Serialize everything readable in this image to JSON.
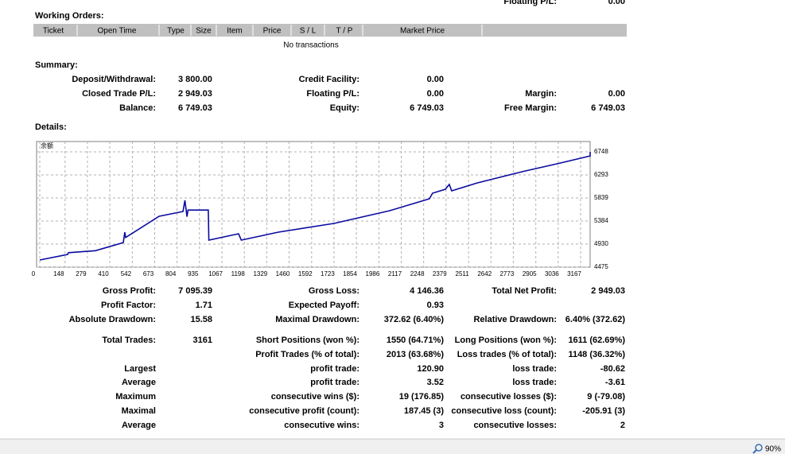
{
  "top_partial": {
    "label": "Floating P/L:",
    "value": "0.00"
  },
  "working_orders": {
    "title": "Working Orders:",
    "columns": [
      "Ticket",
      "Open Time",
      "Type",
      "Size",
      "Item",
      "Price",
      "S / L",
      "T / P",
      "Market Price"
    ],
    "empty": "No transactions"
  },
  "summary": {
    "title": "Summary:",
    "columns": [
      [
        {
          "label": "Deposit/Withdrawal:",
          "value": "3 800.00"
        },
        {
          "label": "Closed Trade P/L:",
          "value": "2 949.03"
        },
        {
          "label": "Balance:",
          "value": "6 749.03"
        }
      ],
      [
        {
          "label": "Credit Facility:",
          "value": "0.00"
        },
        {
          "label": "Floating P/L:",
          "value": "0.00"
        },
        {
          "label": "Equity:",
          "value": "6 749.03"
        }
      ],
      [
        {
          "label": "Margin:",
          "value": "0.00"
        },
        {
          "label": "Free Margin:",
          "value": "6 749.03"
        }
      ]
    ]
  },
  "details": {
    "title": "Details:"
  },
  "chart": {
    "type": "line",
    "legend": "余额",
    "color": "#0a0aa0",
    "grid": true,
    "x": [
      0,
      163,
      168,
      326,
      489,
      498,
      503,
      699,
      839,
      850,
      862,
      868,
      987,
      990,
      1164,
      1180,
      1397,
      1723,
      2049,
      2282,
      2300,
      2375,
      2398,
      2412,
      2561,
      2841,
      3027,
      3223,
      3223
    ],
    "values": [
      4616,
      4726,
      4760,
      4800,
      4960,
      5165,
      5060,
      5478,
      5572,
      5792,
      5470,
      5600,
      5600,
      5008,
      5133,
      5008,
      5165,
      5337,
      5588,
      5823,
      5933,
      6011,
      6105,
      5980,
      6136,
      6371,
      6512,
      6669,
      6748
    ],
    "xlim": [
      0,
      3223
    ],
    "ylim": [
      4475,
      6952
    ],
    "xticks": [
      0,
      148,
      279,
      410,
      542,
      673,
      804,
      935,
      1067,
      1198,
      1329,
      1460,
      1592,
      1723,
      1854,
      1986,
      2117,
      2248,
      2379,
      2511,
      2642,
      2773,
      2905,
      3036,
      3167
    ],
    "yticks": [
      4475,
      4930,
      5384,
      5839,
      6293,
      6748
    ]
  },
  "stats": {
    "rows": [
      {
        "a": {
          "label": "Gross Profit:",
          "value": "7 095.39"
        },
        "b": {
          "label": "Gross Loss:",
          "value": "4 146.36"
        },
        "c": {
          "label": "Total Net Profit:",
          "value": "2 949.03"
        }
      },
      {
        "a": {
          "label": "Profit Factor:",
          "value": "1.71"
        },
        "b": {
          "label": "Expected Payoff:",
          "value": "0.93"
        }
      },
      {
        "a": {
          "label": "Absolute Drawdown:",
          "value": "15.58"
        },
        "b": {
          "label": "Maximal Drawdown:",
          "value": "372.62 (6.40%)"
        },
        "c": {
          "label": "Relative Drawdown:",
          "value": "6.40% (372.62)"
        }
      },
      {
        "a": {
          "label": "Total Trades:",
          "value": "3161"
        },
        "b": {
          "label": "Short Positions (won %):",
          "value": "1550 (64.71%)"
        },
        "c": {
          "label": "Long Positions (won %):",
          "value": "1611 (62.69%)"
        }
      },
      {
        "b": {
          "label": "Profit Trades (% of total):",
          "value": "2013 (63.68%)"
        },
        "c": {
          "label": "Loss trades (% of total):",
          "value": "1148 (36.32%)"
        }
      },
      {
        "a": {
          "label": "Largest"
        },
        "b": {
          "label": "profit trade:",
          "value": "120.90"
        },
        "c": {
          "label": "loss trade:",
          "value": "-80.62"
        }
      },
      {
        "a": {
          "label": "Average"
        },
        "b": {
          "label": "profit trade:",
          "value": "3.52"
        },
        "c": {
          "label": "loss trade:",
          "value": "-3.61"
        }
      },
      {
        "a": {
          "label": "Maximum"
        },
        "b": {
          "label": "consecutive wins ($):",
          "value": "19 (176.85)"
        },
        "c": {
          "label": "consecutive losses ($):",
          "value": "9 (-79.08)"
        }
      },
      {
        "a": {
          "label": "Maximal"
        },
        "b": {
          "label": "consecutive profit (count):",
          "value": "187.45 (3)"
        },
        "c": {
          "label": "consecutive loss (count):",
          "value": "-205.91 (3)"
        }
      },
      {
        "a": {
          "label": "Average"
        },
        "b": {
          "label": "consecutive wins:",
          "value": "3"
        },
        "c": {
          "label": "consecutive losses:",
          "value": "2"
        }
      }
    ]
  },
  "status": {
    "zoom": "90%"
  }
}
